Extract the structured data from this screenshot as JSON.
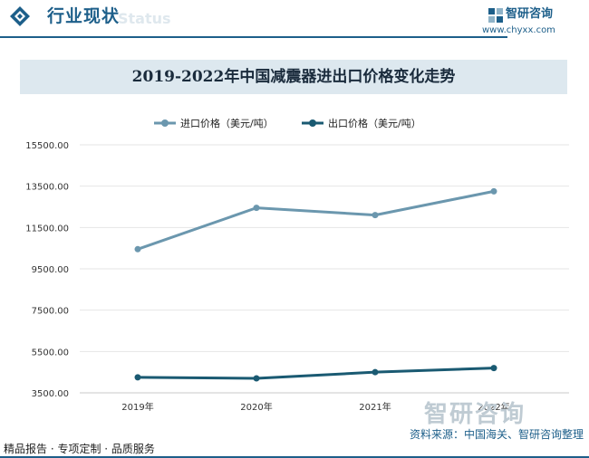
{
  "header": {
    "section_title": "行业现状",
    "watermark_text": "Status",
    "brand_name": "智研咨询",
    "brand_url": "www.chyxx.com"
  },
  "colors": {
    "import_series": "#6b97ae",
    "export_series": "#1a5a72",
    "brand": "#1d5f8a",
    "title_bg": "#dde8ef",
    "gridline": "#e6e6e6",
    "axis": "#c8c8c8"
  },
  "chart_data": {
    "type": "line",
    "title": "2019-2022年中国减震器进出口价格变化走势",
    "categories": [
      "2019年",
      "2020年",
      "2021年",
      "2022年"
    ],
    "series": [
      {
        "name": "进口价格（美元/吨）",
        "values": [
          10450,
          12450,
          12100,
          13250
        ]
      },
      {
        "name": "出口价格（美元/吨）",
        "values": [
          4250,
          4200,
          4500,
          4700
        ]
      }
    ],
    "y_ticks": [
      "15500.00",
      "13500.00",
      "11500.00",
      "9500.00",
      "7500.00",
      "5500.00",
      "3500.00"
    ],
    "ylim": [
      3500,
      15500
    ],
    "xlabel": "",
    "ylabel": "",
    "grid": true,
    "legend_position": "top-left"
  },
  "footer": {
    "left_text": "精品报告 · 专项定制 · 品质服务",
    "source_text": "资料来源：中国海关、智研咨询整理",
    "watermark_text": "智研咨询"
  }
}
